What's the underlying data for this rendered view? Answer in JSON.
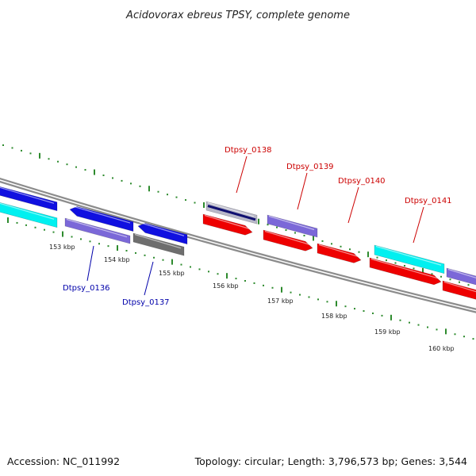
{
  "title": "Acidovorax ebreus TPSY, complete genome",
  "footer": {
    "accession": "Accession: NC_011992",
    "summary": "Topology: circular; Length: 3,796,573 bp; Genes: 3,544"
  },
  "colors": {
    "backbone": "#8c8c8c",
    "tick": "#2e8b2e",
    "label_forward": "#cc0000",
    "label_reverse": "#0000aa",
    "blue": "#1010e0",
    "cyan": "#00f0f0",
    "lavender": "#7b68d8",
    "gray": "#6e6e6e",
    "red": "#ee0000",
    "navy_stripe": "#101070"
  },
  "ticks": [
    {
      "label": "153 kbp",
      "kbp": 153
    },
    {
      "label": "154 kbp",
      "kbp": 154
    },
    {
      "label": "155 kbp",
      "kbp": 155
    },
    {
      "label": "156 kbp",
      "kbp": 156
    },
    {
      "label": "157 kbp",
      "kbp": 157
    },
    {
      "label": "158 kbp",
      "kbp": 158
    },
    {
      "label": "159 kbp",
      "kbp": 159
    },
    {
      "label": "160 kbp",
      "kbp": 160
    }
  ],
  "gene_labels": [
    {
      "name": "Dtpsy_0136",
      "strand": "reverse"
    },
    {
      "name": "Dtpsy_0137",
      "strand": "reverse"
    },
    {
      "name": "Dtpsy_0138",
      "strand": "forward"
    },
    {
      "name": "Dtpsy_0139",
      "strand": "forward"
    },
    {
      "name": "Dtpsy_0140",
      "strand": "forward"
    },
    {
      "name": "Dtpsy_0141",
      "strand": "forward"
    }
  ]
}
